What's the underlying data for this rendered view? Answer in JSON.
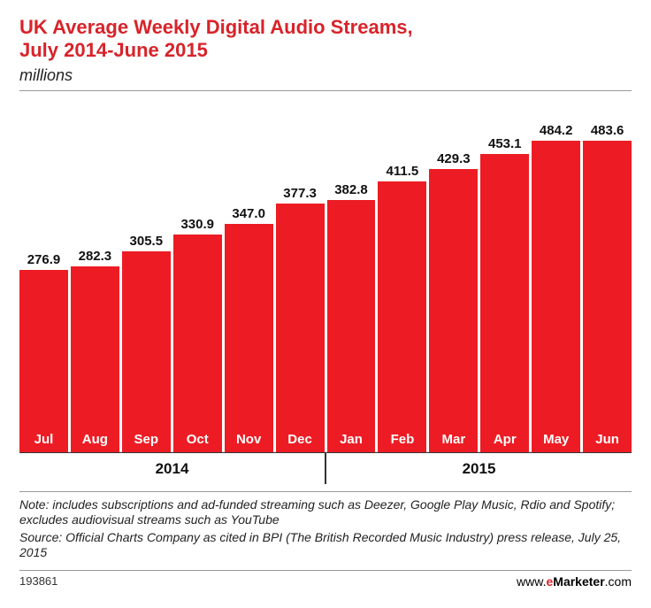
{
  "title_line1": "UK Average Weekly Digital Audio Streams,",
  "title_line2": "July 2014-June 2015",
  "subtitle": "millions",
  "chart": {
    "type": "bar",
    "bar_color": "#ed1c24",
    "value_fontsize": 15,
    "label_fontsize": 15,
    "label_color": "#ffffff",
    "ylim_max": 500,
    "background_color": "#ffffff",
    "bars": [
      {
        "label": "Jul",
        "value": 276.9,
        "year": 2014
      },
      {
        "label": "Aug",
        "value": 282.3,
        "year": 2014
      },
      {
        "label": "Sep",
        "value": 305.5,
        "year": 2014
      },
      {
        "label": "Oct",
        "value": 330.9,
        "year": 2014
      },
      {
        "label": "Nov",
        "value": 347.0,
        "year": 2014,
        "display": "347.0"
      },
      {
        "label": "Dec",
        "value": 377.3,
        "year": 2014
      },
      {
        "label": "Jan",
        "value": 382.8,
        "year": 2015
      },
      {
        "label": "Feb",
        "value": 411.5,
        "year": 2015
      },
      {
        "label": "Mar",
        "value": 429.3,
        "year": 2015
      },
      {
        "label": "Apr",
        "value": 453.1,
        "year": 2015
      },
      {
        "label": "May",
        "value": 484.2,
        "year": 2015
      },
      {
        "label": "Jun",
        "value": 483.6,
        "year": 2015
      }
    ],
    "year_groups": [
      {
        "label": "2014",
        "count": 6
      },
      {
        "label": "2015",
        "count": 6
      }
    ]
  },
  "note": "Note: includes subscriptions and ad-funded streaming such as Deezer, Google Play Music, Rdio and Spotify; excludes audiovisual streams such as YouTube",
  "source": "Source: Official Charts Company as cited in BPI (The British Recorded Music Industry) press release, July 25, 2015",
  "attribution_id": "193861",
  "attribution_prefix": "www.",
  "attribution_brand_e": "e",
  "attribution_brand_m": "Marketer",
  "attribution_suffix": ".com"
}
